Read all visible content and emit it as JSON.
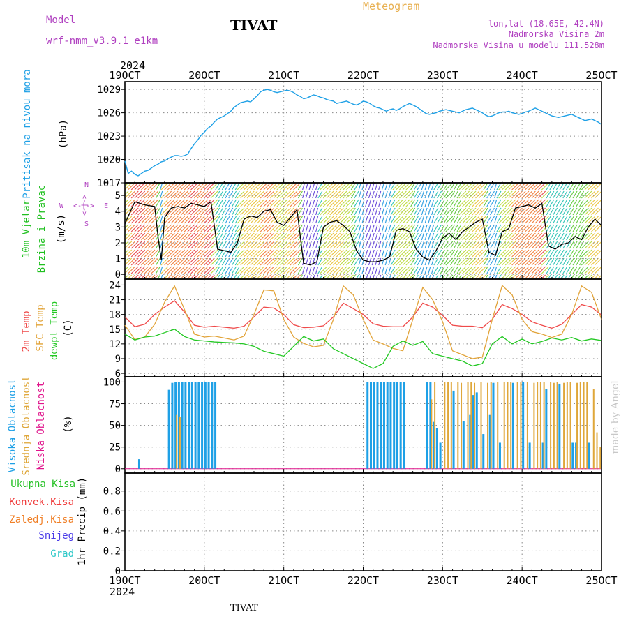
{
  "header": {
    "model_label": "Model",
    "model_name": "wrf-nmm_v3.9.1  e1km",
    "station": "TIVAT",
    "product": "Meteogram",
    "coords": "lon,lat (18.65E, 42.4N)",
    "altitude": "Nadmorska Visina 2m",
    "model_altitude": "Nadmorska Visina u modelu 111.528m",
    "footer_station": "TIVAT",
    "credit": "made by Angel"
  },
  "colors": {
    "pressure": "#1ea0e6",
    "temp2m": "#ef4a4a",
    "sfc_temp": "#e2a43a",
    "dewpoint": "#23c823",
    "high_cloud": "#1ea0e6",
    "mid_cloud": "#dfa73a",
    "low_cloud": "#e0158c",
    "wind_label": "#20c020",
    "purple_text": "#b040c0",
    "orange_text": "#e8b050",
    "credit": "#c8c8c8"
  },
  "time_axis": {
    "year": "2024",
    "ticks": [
      "19OCT",
      "20OCT",
      "21OCT",
      "22OCT",
      "23OCT",
      "24OCT",
      "25OCT"
    ]
  },
  "chart_data": [
    {
      "type": "line",
      "panel": "pressure",
      "ylabel": [
        "Pritisak na nivou mora",
        "(hPa)"
      ],
      "yticks": [
        1017,
        1020,
        1023,
        1026,
        1029
      ],
      "ylim": [
        1017,
        1030
      ],
      "xlim": [
        0,
        144
      ],
      "series": [
        {
          "color_key": "pressure",
          "x": [
            0,
            1,
            2,
            3,
            4,
            5,
            6,
            7,
            8,
            9,
            10,
            11,
            12,
            13,
            14,
            15,
            16,
            17,
            18,
            19,
            20,
            21,
            22,
            23,
            24,
            25,
            26,
            27,
            28,
            29,
            30,
            31,
            32,
            33,
            34,
            35,
            36,
            37,
            38,
            39,
            40,
            41,
            42,
            43,
            44,
            45,
            46,
            47,
            48,
            49,
            50,
            51,
            52,
            53,
            54,
            55,
            56,
            57,
            58,
            59,
            60,
            61,
            62,
            63,
            64,
            65,
            66,
            67,
            68,
            69,
            70,
            71,
            72,
            73,
            74,
            75,
            76,
            77,
            78,
            79,
            80,
            81,
            82,
            83,
            84,
            85,
            86,
            87,
            88,
            89,
            90,
            91,
            92,
            93,
            94,
            95,
            96,
            97,
            98,
            99,
            100,
            101,
            102,
            103,
            104,
            105,
            106,
            107,
            108,
            109,
            110,
            111,
            112,
            113,
            114,
            115,
            116,
            117,
            118,
            119,
            120,
            121,
            122,
            123,
            124,
            125,
            126,
            127,
            128,
            129,
            130,
            131,
            132,
            133,
            134,
            135,
            136,
            137,
            138,
            139,
            140,
            141,
            142,
            143,
            144
          ],
          "y": [
            1019.8,
            1018.2,
            1018.5,
            1018.1,
            1017.9,
            1018.2,
            1018.5,
            1018.6,
            1018.9,
            1019.2,
            1019.4,
            1019.7,
            1019.8,
            1020.1,
            1020.3,
            1020.5,
            1020.5,
            1020.4,
            1020.5,
            1020.7,
            1021.4,
            1022.0,
            1022.5,
            1023.1,
            1023.5,
            1024.0,
            1024.3,
            1024.8,
            1025.2,
            1025.4,
            1025.6,
            1025.9,
            1026.2,
            1026.7,
            1027.0,
            1027.3,
            1027.4,
            1027.5,
            1027.4,
            1027.8,
            1028.2,
            1028.7,
            1028.9,
            1029.0,
            1028.9,
            1028.7,
            1028.6,
            1028.7,
            1028.8,
            1028.9,
            1028.8,
            1028.6,
            1028.3,
            1028.1,
            1027.8,
            1027.9,
            1028.1,
            1028.3,
            1028.2,
            1028.0,
            1027.9,
            1027.7,
            1027.6,
            1027.5,
            1027.2,
            1027.3,
            1027.4,
            1027.5,
            1027.3,
            1027.1,
            1027.0,
            1027.2,
            1027.5,
            1027.4,
            1027.2,
            1026.9,
            1026.7,
            1026.6,
            1026.4,
            1026.2,
            1026.4,
            1026.5,
            1026.3,
            1026.5,
            1026.8,
            1027.0,
            1027.2,
            1027.0,
            1026.8,
            1026.5,
            1026.2,
            1025.9,
            1025.8,
            1025.9,
            1026.0,
            1026.2,
            1026.3,
            1026.4,
            1026.3,
            1026.2,
            1026.1,
            1026.0,
            1026.2,
            1026.4,
            1026.5,
            1026.6,
            1026.4,
            1026.2,
            1026.0,
            1025.7,
            1025.5,
            1025.6,
            1025.8,
            1026.0,
            1026.1,
            1026.1,
            1026.2,
            1026.0,
            1025.9,
            1025.8,
            1025.9,
            1026.1,
            1026.2,
            1026.4,
            1026.6,
            1026.4,
            1026.2,
            1026.0,
            1025.8,
            1025.6,
            1025.5,
            1025.4,
            1025.5,
            1025.6,
            1025.7,
            1025.8,
            1025.6,
            1025.4,
            1025.2,
            1025.0,
            1025.1,
            1025.2,
            1025.0,
            1024.8,
            1024.5
          ]
        }
      ]
    },
    {
      "type": "line",
      "panel": "wind",
      "ylabel": [
        "10m Vjetar",
        "Brzina i Pravac",
        "(m/s)"
      ],
      "compass": {
        "N": "N",
        "S": "S",
        "E": "E",
        "W": "W",
        "glyph": "<-|->"
      },
      "yticks": [
        0,
        1,
        2,
        3,
        4,
        5
      ],
      "ylim": [
        -0.3,
        5.8
      ],
      "xlim": [
        0,
        144
      ],
      "speed": {
        "x": [
          0,
          3,
          6,
          9,
          10,
          11,
          12,
          13,
          14,
          16,
          18,
          20,
          22,
          24,
          26,
          28,
          30,
          32,
          34,
          36,
          38,
          40,
          42,
          44,
          46,
          48,
          50,
          52,
          54,
          56,
          58,
          60,
          62,
          64,
          66,
          68,
          70,
          72,
          74,
          76,
          78,
          80,
          82,
          84,
          86,
          88,
          90,
          92,
          94,
          96,
          98,
          100,
          102,
          104,
          106,
          108,
          110,
          112,
          114,
          116,
          118,
          120,
          122,
          124,
          126,
          128,
          130,
          132,
          134,
          136,
          138,
          140,
          142,
          144
        ],
        "y": [
          3.2,
          4.6,
          4.4,
          4.3,
          2.4,
          0.9,
          3.6,
          3.9,
          4.2,
          4.3,
          4.2,
          4.5,
          4.4,
          4.3,
          4.6,
          1.6,
          1.5,
          1.4,
          2.0,
          3.5,
          3.7,
          3.6,
          4.0,
          4.1,
          3.3,
          3.1,
          3.6,
          4.1,
          0.7,
          0.6,
          0.8,
          3.0,
          3.3,
          3.4,
          3.1,
          2.7,
          1.5,
          0.9,
          0.8,
          0.8,
          0.9,
          1.1,
          2.8,
          2.9,
          2.7,
          1.6,
          1.1,
          0.9,
          1.5,
          2.3,
          2.6,
          2.2,
          2.7,
          3.0,
          3.3,
          3.5,
          1.4,
          1.2,
          2.7,
          2.9,
          4.2,
          4.3,
          4.4,
          4.2,
          4.5,
          1.8,
          1.6,
          1.9,
          2.0,
          2.4,
          2.2,
          3.0,
          3.5,
          3.1
        ]
      }
    },
    {
      "type": "line",
      "panel": "temperature",
      "ylabel": [
        "2m Temp",
        "SFC Temp",
        "dewpt Temp",
        "(C)"
      ],
      "yticks": [
        6,
        9,
        12,
        15,
        18,
        21,
        24
      ],
      "ylim": [
        5.3,
        25.2
      ],
      "xlim": [
        0,
        144
      ],
      "series": [
        {
          "name": "2m Temp",
          "color_key": "temp2m",
          "x": [
            0,
            3,
            6,
            9,
            12,
            15,
            18,
            21,
            24,
            27,
            30,
            33,
            36,
            39,
            42,
            45,
            48,
            51,
            54,
            57,
            60,
            63,
            66,
            69,
            72,
            75,
            78,
            81,
            84,
            87,
            90,
            93,
            96,
            99,
            102,
            105,
            108,
            111,
            114,
            117,
            120,
            123,
            126,
            129,
            132,
            135,
            138,
            141,
            144
          ],
          "y": [
            17.5,
            15.5,
            16.0,
            18.0,
            19.5,
            20.8,
            18.5,
            15.8,
            15.4,
            15.6,
            15.4,
            15.2,
            15.6,
            17.5,
            19.5,
            19.3,
            18.0,
            15.9,
            15.3,
            15.4,
            15.7,
            17.5,
            20.3,
            19.2,
            18.0,
            16.1,
            15.6,
            15.5,
            15.5,
            17.5,
            20.3,
            19.5,
            17.8,
            15.8,
            15.6,
            15.6,
            15.3,
            17.0,
            20.0,
            19.2,
            18.0,
            16.5,
            15.8,
            15.2,
            16.0,
            18.0,
            20.0,
            19.5,
            17.9
          ]
        },
        {
          "name": "SFC Temp",
          "color_key": "sfc_temp",
          "x": [
            0,
            3,
            6,
            9,
            12,
            15,
            18,
            21,
            24,
            27,
            30,
            33,
            36,
            39,
            42,
            45,
            48,
            51,
            54,
            57,
            60,
            63,
            66,
            69,
            72,
            75,
            78,
            81,
            84,
            87,
            90,
            93,
            96,
            99,
            102,
            105,
            108,
            111,
            114,
            117,
            120,
            123,
            126,
            129,
            132,
            135,
            138,
            141,
            144
          ],
          "y": [
            15.8,
            12.9,
            13.4,
            16.0,
            20.5,
            23.8,
            19.0,
            14.0,
            13.4,
            13.6,
            13.2,
            12.8,
            13.6,
            18.0,
            23.0,
            22.8,
            17.0,
            13.4,
            12.1,
            11.4,
            11.7,
            17.0,
            23.8,
            22.0,
            17.0,
            12.8,
            12.0,
            11.1,
            10.6,
            17.0,
            23.5,
            21.0,
            16.5,
            10.6,
            9.8,
            9.0,
            9.3,
            17.0,
            23.9,
            22.0,
            17.0,
            14.5,
            14.0,
            13.3,
            14.0,
            18.0,
            23.8,
            22.5,
            17.0
          ]
        },
        {
          "name": "dewpt Temp",
          "color_key": "dewpoint",
          "x": [
            0,
            3,
            6,
            9,
            12,
            15,
            18,
            21,
            24,
            27,
            30,
            33,
            36,
            39,
            42,
            45,
            48,
            51,
            54,
            57,
            60,
            63,
            66,
            69,
            72,
            75,
            78,
            81,
            84,
            87,
            90,
            93,
            96,
            99,
            102,
            105,
            108,
            111,
            114,
            117,
            120,
            123,
            126,
            129,
            132,
            135,
            138,
            141,
            144
          ],
          "y": [
            14.0,
            12.8,
            13.4,
            13.6,
            14.3,
            15.0,
            13.5,
            12.8,
            12.6,
            12.4,
            12.3,
            12.2,
            12.0,
            11.5,
            10.5,
            10.0,
            9.5,
            11.5,
            13.5,
            12.6,
            13.0,
            11.0,
            10.0,
            9.0,
            8.0,
            7.0,
            8.0,
            11.5,
            12.6,
            11.7,
            12.5,
            10.0,
            9.5,
            9.0,
            8.5,
            7.5,
            8.0,
            12.0,
            13.5,
            12.0,
            13.0,
            12.0,
            12.5,
            13.2,
            12.8,
            13.3,
            12.6,
            13.0,
            12.7
          ]
        }
      ]
    },
    {
      "type": "bar",
      "panel": "cloud",
      "ylabel": [
        "Visoka Oblacnost",
        "Srednja Oblacnost",
        "Niska Oblacnost",
        "(%)"
      ],
      "yticks": [
        0,
        25,
        50,
        75,
        100
      ],
      "ylim": [
        -5,
        106
      ],
      "xlim": [
        0,
        144
      ],
      "series": [
        {
          "name": "Visoka Oblacnost",
          "color_key": "high_cloud",
          "x": [
            4,
            13,
            14,
            15,
            16,
            17,
            18,
            19,
            20,
            21,
            22,
            23,
            24,
            25,
            26,
            27,
            73,
            74,
            75,
            76,
            77,
            78,
            79,
            80,
            81,
            82,
            83,
            84,
            91,
            92,
            93,
            94,
            95,
            99,
            102,
            104,
            105,
            106,
            108,
            110,
            111,
            113,
            117,
            120,
            122,
            126,
            127,
            131,
            135,
            136,
            140
          ],
          "y": [
            11,
            91,
            99,
            100,
            100,
            100,
            100,
            100,
            100,
            100,
            100,
            100,
            100,
            100,
            100,
            100,
            100,
            100,
            100,
            100,
            100,
            100,
            100,
            100,
            100,
            100,
            100,
            100,
            100,
            100,
            54,
            47,
            30,
            90,
            55,
            62,
            85,
            88,
            40,
            62,
            99,
            30,
            99,
            100,
            30,
            30,
            92,
            98,
            30,
            30,
            30
          ]
        },
        {
          "name": "Srednja Oblacnost",
          "color_key": "mid_cloud",
          "x": [
            15,
            16,
            92,
            93,
            96,
            97,
            98,
            100,
            101,
            103,
            104,
            105,
            107,
            109,
            110,
            112,
            114,
            115,
            116,
            118,
            119,
            121,
            123,
            124,
            125,
            126,
            128,
            129,
            130,
            132,
            133,
            134,
            136,
            137,
            138,
            139,
            141,
            142,
            143
          ],
          "y": [
            62,
            60,
            80,
            100,
            100,
            100,
            100,
            100,
            99,
            100,
            100,
            99,
            100,
            99,
            100,
            100,
            100,
            100,
            100,
            100,
            100,
            100,
            99,
            100,
            100,
            100,
            100,
            99,
            100,
            99,
            100,
            100,
            99,
            100,
            100,
            100,
            92,
            42,
            25
          ]
        },
        {
          "name": "Niska Oblacnost",
          "color_key": "low_cloud",
          "x": [],
          "y": []
        }
      ]
    },
    {
      "type": "line",
      "panel": "precip",
      "ylabel": [
        "1hr Precip (mm)"
      ],
      "yticks": [
        0,
        0.2,
        0.4,
        0.6,
        0.8
      ],
      "ylim": [
        0,
        0.98
      ],
      "xlim": [
        0,
        144
      ],
      "legend": [
        "Ukupna Kisa",
        "Konvek.Kisa",
        "Zaledj.Kisa",
        "Snijeg",
        "Grad"
      ],
      "legend_colors": [
        "#23c023",
        "#f03c3c",
        "#f08028",
        "#4a3ce8",
        "#2ec8c8"
      ],
      "series": []
    }
  ]
}
